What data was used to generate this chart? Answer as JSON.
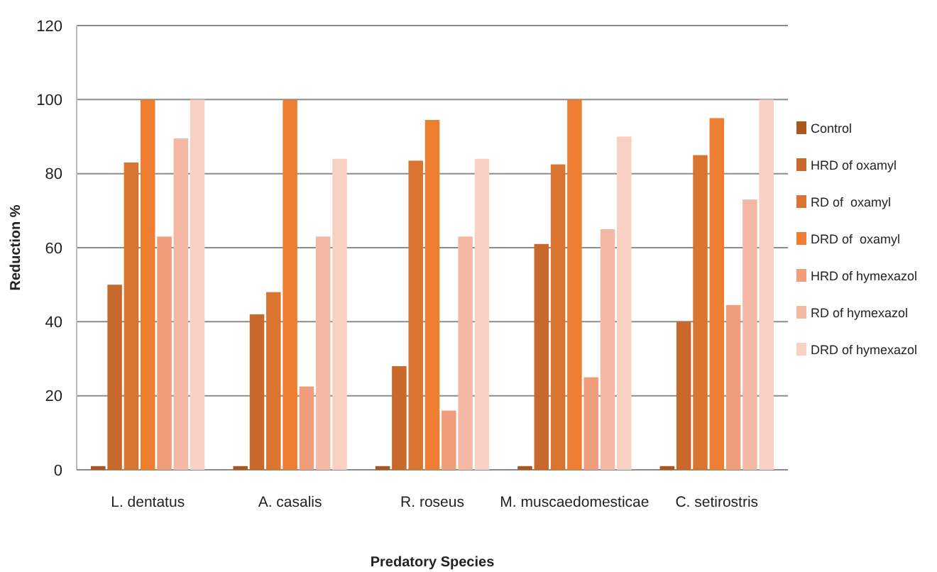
{
  "chart_data": {
    "type": "bar",
    "xlabel": "Predatory Species",
    "ylabel": "Reduction %",
    "categories": [
      "L. dentatus",
      "A. casalis",
      "R. roseus",
      "M. muscaedomesticae",
      "C. setirostris"
    ],
    "series": [
      {
        "name": "Control",
        "color": "#a9561f",
        "values": [
          1,
          1,
          1,
          1,
          1
        ]
      },
      {
        "name": "HRD of oxamyl",
        "color": "#c8692b",
        "values": [
          50,
          42,
          28,
          61,
          40
        ]
      },
      {
        "name": "RD of  oxamyl",
        "color": "#d97431",
        "values": [
          83,
          48,
          83.5,
          82.5,
          85
        ]
      },
      {
        "name": "DRD of  oxamyl",
        "color": "#ed7d31",
        "values": [
          100,
          100,
          94.5,
          100,
          95
        ]
      },
      {
        "name": "HRD of hymexazol",
        "color": "#f09d7c",
        "values": [
          63,
          22.5,
          16,
          25,
          44.5
        ]
      },
      {
        "name": "RD of hymexazol",
        "color": "#f4b8a4",
        "values": [
          89.5,
          63,
          63,
          65,
          73
        ]
      },
      {
        "name": "DRD of hymexazol",
        "color": "#f8d0c4",
        "values": [
          100,
          84,
          84,
          90,
          100
        ]
      }
    ],
    "ylim": [
      0,
      120
    ],
    "yticks": [
      0,
      20,
      40,
      60,
      80,
      100,
      120
    ],
    "grid": "y",
    "legend": "right"
  }
}
